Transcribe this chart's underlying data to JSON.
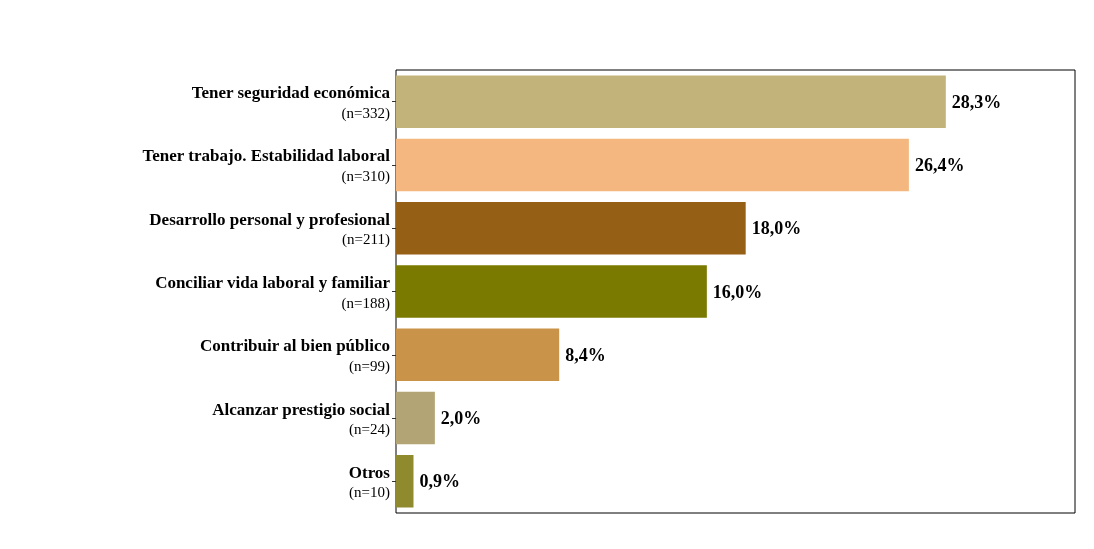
{
  "chart_data": {
    "type": "bar",
    "orientation": "horizontal",
    "categories": [
      "Tener seguridad económica\n(n=332)",
      "Tener trabajo. Estabilidad laboral\n(n=310)",
      "Desarrollo personal y profesional\n(n=211)",
      "Conciliar vida laboral y familiar\n(n=188)",
      "Contribuir al bien público\n(n=99)",
      "Alcanzar prestigio social\n(n=24)",
      "Otros\n(n=10)"
    ],
    "values": [
      28.3,
      26.4,
      18.0,
      16.0,
      8.4,
      2.0,
      0.9
    ],
    "value_labels": [
      "28,3%",
      "26,4%",
      "18,0%",
      "16,0%",
      "8,4%",
      "2,0%",
      "0,9%"
    ],
    "colors": [
      "#c2b37a",
      "#f4b77f",
      "#965f16",
      "#7a7a00",
      "#c9944a",
      "#b2a474",
      "#8f8a2e"
    ]
  }
}
